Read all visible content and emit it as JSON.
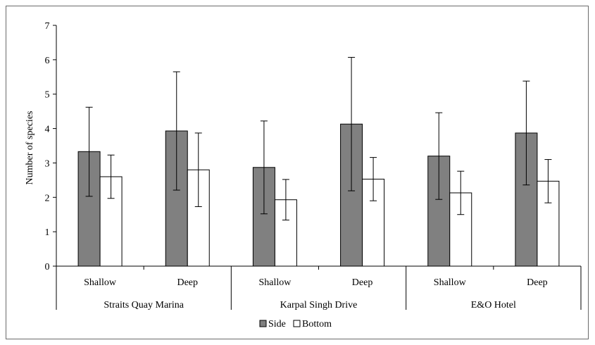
{
  "chart_data": {
    "type": "bar",
    "ylabel": "Number of species",
    "ylim": [
      0,
      7
    ],
    "yticks": [
      0,
      1,
      2,
      3,
      4,
      5,
      6,
      7
    ],
    "groups": [
      "Straits Quay Marina",
      "Karpal Singh Drive",
      "E&O Hotel"
    ],
    "categories": [
      "Shallow",
      "Deep",
      "Shallow",
      "Deep",
      "Shallow",
      "Deep"
    ],
    "series": [
      {
        "name": "Side",
        "color": "#808080",
        "values": [
          3.33,
          3.93,
          2.87,
          4.13,
          3.2,
          3.87
        ],
        "err_upper": [
          4.62,
          5.65,
          4.22,
          6.07,
          4.46,
          5.38
        ],
        "err_lower": [
          2.03,
          2.21,
          1.52,
          2.19,
          1.94,
          2.36
        ]
      },
      {
        "name": "Bottom",
        "color": "#ffffff",
        "values": [
          2.6,
          2.8,
          1.93,
          2.53,
          2.13,
          2.47
        ],
        "err_upper": [
          3.23,
          3.87,
          2.52,
          3.16,
          2.76,
          3.1
        ],
        "err_lower": [
          1.97,
          1.73,
          1.34,
          1.9,
          1.5,
          1.84
        ]
      }
    ],
    "legend": "bottom",
    "grid": false
  }
}
